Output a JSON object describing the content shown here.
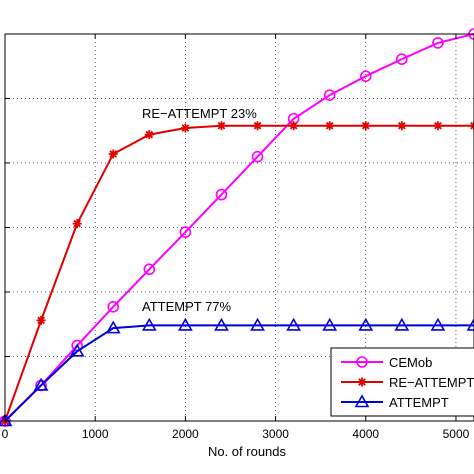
{
  "chart_data": {
    "type": "line",
    "xlabel": "No. of rounds",
    "ylabel": "",
    "title": "",
    "xlim": [
      0,
      5200
    ],
    "ylim": [
      0,
      1.0
    ],
    "xticks": [
      0,
      1000,
      2000,
      3000,
      4000,
      5000
    ],
    "grid": true,
    "legend_position": "bottom-right",
    "annotations": [
      {
        "text": "RE−ATTEMPT 23%"
      },
      {
        "text": "ATTEMPT 77%"
      }
    ],
    "series": [
      {
        "name": "CEMob",
        "color": "#ff00ff",
        "marker": "circle",
        "x": [
          0,
          400,
          800,
          1200,
          1600,
          2000,
          2400,
          2800,
          3200,
          3600,
          4000,
          4400,
          4800,
          5200
        ],
        "y": [
          0.0,
          0.092,
          0.195,
          0.295,
          0.392,
          0.488,
          0.585,
          0.683,
          0.781,
          0.842,
          0.891,
          0.935,
          0.977,
          1.0
        ]
      },
      {
        "name": "RE−ATTEMPT",
        "color": "#e00000",
        "marker": "star",
        "x": [
          0,
          400,
          800,
          1200,
          1600,
          2000,
          2400,
          2800,
          3200,
          3600,
          4000,
          4400,
          4800,
          5200
        ],
        "y": [
          0.0,
          0.26,
          0.51,
          0.69,
          0.74,
          0.757,
          0.763,
          0.763,
          0.763,
          0.763,
          0.763,
          0.763,
          0.763,
          0.763
        ]
      },
      {
        "name": "ATTEMPT",
        "color": "#0000dd",
        "marker": "triangle",
        "x": [
          0,
          400,
          800,
          1200,
          1600,
          2000,
          2400,
          2800,
          3200,
          3600,
          4000,
          4400,
          4800,
          5200
        ],
        "y": [
          0.0,
          0.092,
          0.18,
          0.24,
          0.247,
          0.247,
          0.247,
          0.247,
          0.247,
          0.247,
          0.247,
          0.247,
          0.247,
          0.247
        ]
      }
    ]
  }
}
